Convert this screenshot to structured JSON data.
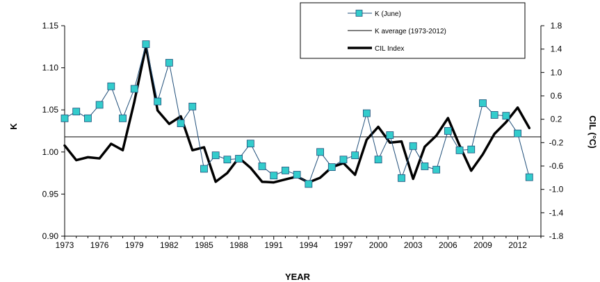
{
  "chart_data": {
    "type": "line",
    "title": "",
    "xlabel": "YEAR",
    "ylabel_left": "K",
    "ylabel_right": "CIL (°C)",
    "xlim": [
      1973,
      2014
    ],
    "ylim_left": [
      0.9,
      1.15
    ],
    "ylim_right": [
      -1.8,
      1.8
    ],
    "x_ticks": [
      1973,
      1976,
      1979,
      1982,
      1985,
      1988,
      1991,
      1994,
      1997,
      2000,
      2003,
      2006,
      2009,
      2012
    ],
    "y_left_ticks": [
      "0.90",
      "0.95",
      "1.00",
      "1.05",
      "1.10",
      "1.15"
    ],
    "y_right_ticks": [
      "-1.8",
      "-1.4",
      "-1.0",
      "-0.6",
      "-0.2",
      "0.2",
      "0.6",
      "1.0",
      "1.4",
      "1.8"
    ],
    "grid": false,
    "legend_position": "top-right",
    "series": [
      {
        "name": "K (June)",
        "axis": "left",
        "color": "#1f4e79",
        "marker_color": "#33cccc",
        "x": [
          1973,
          1974,
          1975,
          1976,
          1977,
          1978,
          1979,
          1980,
          1981,
          1982,
          1983,
          1984,
          1985,
          1986,
          1987,
          1988,
          1989,
          1990,
          1991,
          1992,
          1993,
          1994,
          1995,
          1996,
          1997,
          1998,
          1999,
          2000,
          2001,
          2002,
          2003,
          2004,
          2005,
          2006,
          2007,
          2008,
          2009,
          2010,
          2011,
          2012,
          2013
        ],
        "values": [
          1.04,
          1.048,
          1.04,
          1.056,
          1.078,
          1.04,
          1.075,
          1.128,
          1.06,
          1.106,
          1.034,
          1.054,
          0.98,
          0.996,
          0.991,
          0.992,
          1.01,
          0.983,
          0.972,
          0.978,
          0.973,
          0.962,
          1.0,
          0.982,
          0.991,
          0.996,
          1.046,
          0.991,
          1.02,
          0.969,
          1.007,
          0.983,
          0.979,
          1.025,
          1.002,
          1.003,
          1.058,
          1.044,
          1.043,
          1.022,
          0.97
        ]
      },
      {
        "name": "K average (1973-2012)",
        "axis": "left",
        "color": "#000000",
        "x": [
          1973,
          2013
        ],
        "values": [
          1.018,
          1.018
        ]
      },
      {
        "name": "CIL Index",
        "axis": "right",
        "color": "#000000",
        "x": [
          1973,
          1974,
          1975,
          1976,
          1977,
          1978,
          1979,
          1980,
          1981,
          1982,
          1983,
          1984,
          1985,
          1986,
          1987,
          1988,
          1989,
          1990,
          1991,
          1992,
          1993,
          1994,
          1995,
          1996,
          1997,
          1998,
          1999,
          2000,
          2001,
          2002,
          2003,
          2004,
          2005,
          2006,
          2007,
          2008,
          2009,
          2010,
          2011,
          2012,
          2013
        ],
        "values": [
          -0.25,
          -0.5,
          -0.45,
          -0.47,
          -0.22,
          -0.33,
          0.5,
          1.45,
          0.35,
          0.12,
          0.25,
          -0.33,
          -0.28,
          -0.87,
          -0.72,
          -0.46,
          -0.63,
          -0.87,
          -0.88,
          -0.83,
          -0.78,
          -0.88,
          -0.8,
          -0.62,
          -0.55,
          -0.75,
          -0.15,
          0.07,
          -0.2,
          -0.18,
          -0.82,
          -0.27,
          -0.08,
          0.22,
          -0.25,
          -0.68,
          -0.4,
          -0.05,
          0.15,
          0.4,
          0.05
        ]
      }
    ]
  }
}
